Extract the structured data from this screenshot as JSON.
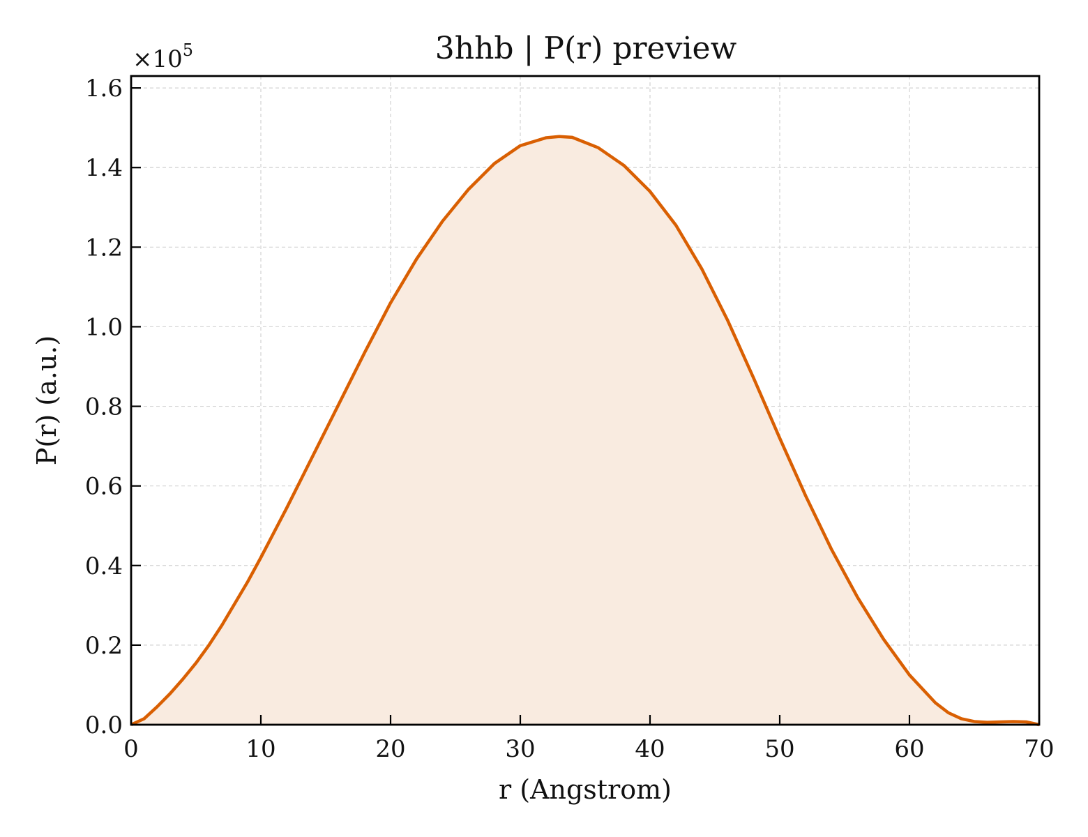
{
  "chart_data": {
    "type": "area",
    "title": "3hhb | P(r) preview",
    "xlabel": "r (Angstrom)",
    "ylabel": "P(r) (a.u.)",
    "y_multiplier": {
      "base": "×10",
      "exponent": "5"
    },
    "xlim": [
      0,
      70
    ],
    "ylim": [
      0,
      1.63
    ],
    "xticks": [
      0,
      10,
      20,
      30,
      40,
      50,
      60,
      70
    ],
    "xtick_labels": [
      "0",
      "10",
      "20",
      "30",
      "40",
      "50",
      "60",
      "70"
    ],
    "yticks": [
      0.0,
      0.2,
      0.4,
      0.6,
      0.8,
      1.0,
      1.2,
      1.4,
      1.6
    ],
    "ytick_labels": [
      "0.0",
      "0.2",
      "0.4",
      "0.6",
      "0.8",
      "1.0",
      "1.2",
      "1.4",
      "1.6"
    ],
    "grid": true,
    "line_color": "#d95f02",
    "fill_color": "#f9ebe0",
    "x": [
      0,
      1,
      2,
      3,
      4,
      5,
      6,
      7,
      8,
      9,
      10,
      12,
      14,
      16,
      18,
      20,
      22,
      24,
      26,
      28,
      30,
      32,
      33,
      34,
      36,
      38,
      40,
      42,
      44,
      46,
      48,
      50,
      52,
      54,
      56,
      58,
      60,
      62,
      63,
      64,
      65,
      66,
      67,
      68,
      69,
      70
    ],
    "y": [
      0.0,
      0.015,
      0.045,
      0.078,
      0.115,
      0.155,
      0.2,
      0.25,
      0.305,
      0.36,
      0.42,
      0.545,
      0.675,
      0.805,
      0.935,
      1.06,
      1.17,
      1.265,
      1.345,
      1.41,
      1.455,
      1.475,
      1.478,
      1.476,
      1.45,
      1.405,
      1.34,
      1.255,
      1.145,
      1.015,
      0.87,
      0.72,
      0.575,
      0.44,
      0.32,
      0.215,
      0.125,
      0.055,
      0.03,
      0.015,
      0.008,
      0.006,
      0.007,
      0.008,
      0.007,
      0.0
    ]
  }
}
